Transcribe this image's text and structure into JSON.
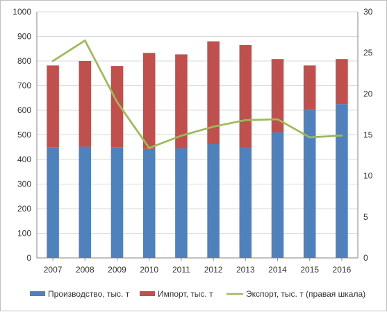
{
  "chart_data": {
    "type": "bar",
    "stacked": true,
    "categories": [
      "2007",
      "2008",
      "2009",
      "2010",
      "2011",
      "2012",
      "2013",
      "2014",
      "2015",
      "2016"
    ],
    "series": [
      {
        "name": "Производство, тыс. т",
        "kind": "bar",
        "axis": "left",
        "color": "#4f81bd",
        "values": [
          450,
          452,
          450,
          443,
          445,
          462,
          448,
          510,
          602,
          625
        ]
      },
      {
        "name": "Импорт, тыс. т",
        "kind": "bar",
        "axis": "left",
        "color": "#c0504d",
        "values": [
          332,
          348,
          330,
          390,
          382,
          418,
          417,
          298,
          180,
          183
        ]
      },
      {
        "name": "Экспорт, тыс. т (правая шкала)",
        "kind": "line",
        "axis": "right",
        "color": "#9bbb59",
        "values": [
          24.0,
          26.5,
          19.0,
          13.4,
          14.9,
          16.0,
          16.8,
          16.9,
          14.7,
          14.9
        ]
      }
    ],
    "y_left": {
      "min": 0,
      "max": 1000,
      "ticks": [
        "0",
        "100",
        "200",
        "300",
        "400",
        "500",
        "600",
        "700",
        "800",
        "900",
        "1000"
      ]
    },
    "y_right": {
      "min": 0,
      "max": 30,
      "ticks": [
        "0",
        "5",
        "10",
        "15",
        "20",
        "25",
        "30"
      ]
    },
    "grid": true,
    "legend_position": "bottom"
  }
}
